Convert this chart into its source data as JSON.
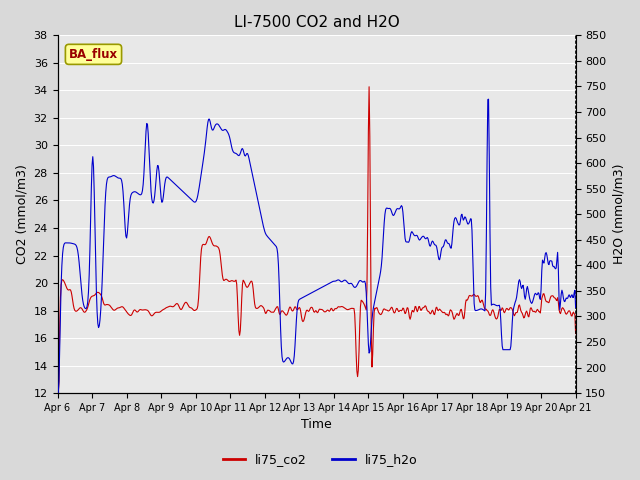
{
  "title": "LI-7500 CO2 and H2O",
  "xlabel": "Time",
  "ylabel_left": "CO2 (mmol/m3)",
  "ylabel_right": "H2O (mmol/m3)",
  "co2_ylim": [
    12,
    38
  ],
  "h2o_ylim": [
    150,
    850
  ],
  "co2_yticks": [
    12,
    14,
    16,
    18,
    20,
    22,
    24,
    26,
    28,
    30,
    32,
    34,
    36,
    38
  ],
  "h2o_yticks": [
    150,
    200,
    250,
    300,
    350,
    400,
    450,
    500,
    550,
    600,
    650,
    700,
    750,
    800,
    850
  ],
  "xtick_labels": [
    "Apr 6",
    "Apr 7",
    "Apr 8",
    "Apr 9",
    "Apr 10",
    "Apr 11",
    "Apr 12",
    "Apr 13",
    "Apr 14",
    "Apr 15",
    "Apr 16",
    "Apr 17",
    "Apr 18",
    "Apr 19",
    "Apr 20",
    "Apr 21"
  ],
  "co2_color": "#cc0000",
  "h2o_color": "#0000cc",
  "legend_co2": "li75_co2",
  "legend_h2o": "li75_h2o",
  "ba_flux_label": "BA_flux",
  "ba_flux_bg": "#ffff99",
  "ba_flux_border": "#999900",
  "ba_flux_text_color": "#990000",
  "bg_color": "#d9d9d9",
  "plot_bg_color": "#e8e8e8",
  "grid_color": "#ffffff",
  "title_fontsize": 11,
  "axis_fontsize": 9,
  "tick_fontsize": 8,
  "legend_fontsize": 9
}
